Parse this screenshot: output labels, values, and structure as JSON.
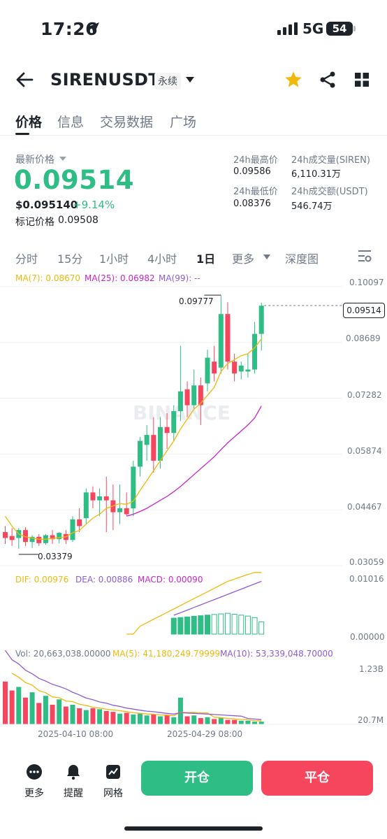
{
  "status": {
    "time": "17:26",
    "network": "5G",
    "battery": "54"
  },
  "header": {
    "symbol": "SIRENUSDT",
    "contract_type": "永续"
  },
  "tabs": [
    "价格",
    "信息",
    "交易数据",
    "广场"
  ],
  "price": {
    "latest_label": "最新价格",
    "last": "0.09514",
    "usd": "$0.095140",
    "change": "+9.14%",
    "mark_label": "标记价格",
    "mark": "0.09508"
  },
  "stats": {
    "high_label": "24h最高价",
    "high": "0.09586",
    "low_label": "24h最低价",
    "low": "0.08376",
    "vol_label": "24h成交量(SIREN)",
    "vol": "6,110.31万",
    "amt_label": "24h成交额(USDT)",
    "amt": "546.74万"
  },
  "intervals": [
    "分时",
    "15分",
    "1小时",
    "4小时",
    "1日",
    "更多",
    "深度图"
  ],
  "ma_legend": {
    "ma7": "MA(7): 0.08670",
    "ma25": "MA(25): 0.06982",
    "ma99": "MA(99): --"
  },
  "macd_legend": {
    "dif": "DIF: 0.00976",
    "dea": "DEA: 0.00886",
    "macd": "MACD: 0.00090"
  },
  "vol_legend": {
    "vol": "Vol: 20,663,038.00000",
    "ma5": "MA(5): 41,180,249.79999",
    "ma10": "MA(10): 53,339,048.70000"
  },
  "colors": {
    "up": "#2ebd85",
    "down": "#f6465d",
    "ma7": "#f0b90b",
    "ma25": "#c925c9",
    "ma10": "#8e5cd9",
    "accent": "#f0b90b"
  },
  "chart_data": {
    "type": "candlestick",
    "y_ticks": [
      "0.10097",
      "0.08689",
      "0.07282",
      "0.05874",
      "0.04467",
      "0.03059"
    ],
    "ylim": [
      0.03059,
      0.10097
    ],
    "last_price": "0.09514",
    "max_label": "0.09777",
    "min_label": "0.03379",
    "macd_ticks": [
      "0.01016",
      "0.00000"
    ],
    "vol_ticks": [
      "1.23B",
      "20.7M"
    ],
    "x_labels": [
      "2025-04-10 08:00",
      "2025-04-29 08:00"
    ],
    "candles": [
      {
        "o": 0.038,
        "h": 0.0395,
        "l": 0.035,
        "c": 0.0365
      },
      {
        "o": 0.037,
        "h": 0.039,
        "l": 0.0345,
        "c": 0.036
      },
      {
        "o": 0.0365,
        "h": 0.039,
        "l": 0.0338,
        "c": 0.0385
      },
      {
        "o": 0.0385,
        "h": 0.0392,
        "l": 0.0345,
        "c": 0.0355
      },
      {
        "o": 0.0355,
        "h": 0.0372,
        "l": 0.034,
        "c": 0.0368
      },
      {
        "o": 0.0368,
        "h": 0.0375,
        "l": 0.0345,
        "c": 0.0352
      },
      {
        "o": 0.0352,
        "h": 0.0375,
        "l": 0.0348,
        "c": 0.0372
      },
      {
        "o": 0.0372,
        "h": 0.0385,
        "l": 0.035,
        "c": 0.0362
      },
      {
        "o": 0.0362,
        "h": 0.038,
        "l": 0.0352,
        "c": 0.0378
      },
      {
        "o": 0.0375,
        "h": 0.0385,
        "l": 0.035,
        "c": 0.036
      },
      {
        "o": 0.036,
        "h": 0.042,
        "l": 0.0355,
        "c": 0.0412
      },
      {
        "o": 0.0412,
        "h": 0.044,
        "l": 0.038,
        "c": 0.0395
      },
      {
        "o": 0.0415,
        "h": 0.049,
        "l": 0.04,
        "c": 0.048
      },
      {
        "o": 0.048,
        "h": 0.0495,
        "l": 0.044,
        "c": 0.046
      },
      {
        "o": 0.046,
        "h": 0.049,
        "l": 0.042,
        "c": 0.047
      },
      {
        "o": 0.047,
        "h": 0.052,
        "l": 0.038,
        "c": 0.046
      },
      {
        "o": 0.046,
        "h": 0.05,
        "l": 0.0385,
        "c": 0.043
      },
      {
        "o": 0.043,
        "h": 0.05,
        "l": 0.04,
        "c": 0.044
      },
      {
        "o": 0.044,
        "h": 0.048,
        "l": 0.042,
        "c": 0.0425
      },
      {
        "o": 0.044,
        "h": 0.056,
        "l": 0.042,
        "c": 0.0545
      },
      {
        "o": 0.0545,
        "h": 0.062,
        "l": 0.052,
        "c": 0.061
      },
      {
        "o": 0.06,
        "h": 0.065,
        "l": 0.056,
        "c": 0.0625
      },
      {
        "o": 0.0625,
        "h": 0.067,
        "l": 0.053,
        "c": 0.056
      },
      {
        "o": 0.056,
        "h": 0.067,
        "l": 0.054,
        "c": 0.0645
      },
      {
        "o": 0.0645,
        "h": 0.068,
        "l": 0.059,
        "c": 0.063
      },
      {
        "o": 0.063,
        "h": 0.07,
        "l": 0.061,
        "c": 0.0685
      },
      {
        "o": 0.0685,
        "h": 0.085,
        "l": 0.066,
        "c": 0.0735
      },
      {
        "o": 0.074,
        "h": 0.076,
        "l": 0.067,
        "c": 0.07
      },
      {
        "o": 0.07,
        "h": 0.079,
        "l": 0.069,
        "c": 0.075
      },
      {
        "o": 0.075,
        "h": 0.077,
        "l": 0.065,
        "c": 0.07
      },
      {
        "o": 0.0755,
        "h": 0.084,
        "l": 0.0735,
        "c": 0.082
      },
      {
        "o": 0.081,
        "h": 0.085,
        "l": 0.076,
        "c": 0.078
      },
      {
        "o": 0.0795,
        "h": 0.0977,
        "l": 0.078,
        "c": 0.093
      },
      {
        "o": 0.093,
        "h": 0.096,
        "l": 0.079,
        "c": 0.081
      },
      {
        "o": 0.081,
        "h": 0.083,
        "l": 0.076,
        "c": 0.078
      },
      {
        "o": 0.0785,
        "h": 0.081,
        "l": 0.0765,
        "c": 0.08
      },
      {
        "o": 0.0785,
        "h": 0.083,
        "l": 0.077,
        "c": 0.079
      },
      {
        "o": 0.079,
        "h": 0.091,
        "l": 0.078,
        "c": 0.088
      },
      {
        "o": 0.088,
        "h": 0.0959,
        "l": 0.0838,
        "c": 0.0951
      }
    ],
    "ma7": [
      0.042,
      0.0395,
      0.0375,
      0.0368,
      0.0365,
      0.0362,
      0.0362,
      0.0364,
      0.0366,
      0.0368,
      0.0378,
      0.0384,
      0.04,
      0.0415,
      0.0425,
      0.044,
      0.0446,
      0.0452,
      0.045,
      0.0458,
      0.0485,
      0.051,
      0.0535,
      0.056,
      0.0585,
      0.061,
      0.064,
      0.0665,
      0.069,
      0.0705,
      0.0725,
      0.0745,
      0.0785,
      0.0805,
      0.0815,
      0.0825,
      0.083,
      0.0845,
      0.0867
    ],
    "ma25": [
      null,
      null,
      null,
      null,
      null,
      null,
      null,
      null,
      null,
      null,
      null,
      null,
      null,
      null,
      null,
      null,
      null,
      null,
      0.042,
      0.0425,
      0.0432,
      0.044,
      0.045,
      0.046,
      0.047,
      0.0482,
      0.0495,
      0.051,
      0.0525,
      0.054,
      0.0555,
      0.057,
      0.0588,
      0.0605,
      0.062,
      0.0635,
      0.065,
      0.0668,
      0.0698
    ]
  }
}
